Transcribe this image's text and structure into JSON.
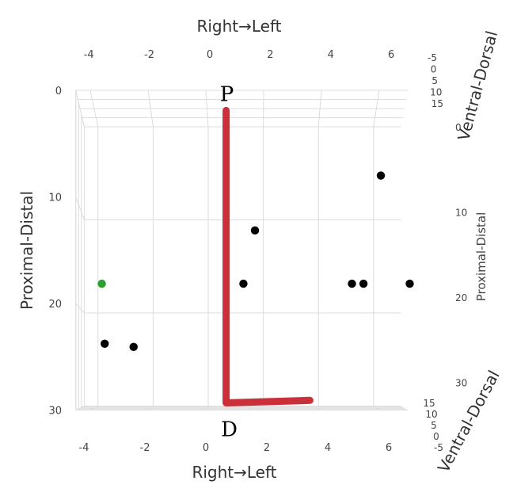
{
  "chart_data": {
    "type": "scatter",
    "projection": "3d",
    "grid": true,
    "axes": {
      "x": {
        "label": "Right→Left",
        "range": [
          -4.5,
          7
        ],
        "ticks": [
          -4,
          -2,
          0,
          2,
          4,
          6
        ]
      },
      "y": {
        "label": "Proximal-Distal",
        "range": [
          0,
          30
        ],
        "ticks": [
          0,
          10,
          20,
          30
        ],
        "reversed": true
      },
      "z": {
        "label": "Ventral-Dorsal",
        "range": [
          -5,
          15
        ],
        "ticks": [
          -5,
          0,
          5,
          10,
          15
        ]
      }
    },
    "series": [
      {
        "type": "line",
        "color": "#c9303a",
        "points": [
          {
            "x": 0.7,
            "y": 1,
            "z": 0
          },
          {
            "x": 0.7,
            "y": 30,
            "z": 0
          },
          {
            "x": 3.6,
            "y": 28.5,
            "z": 0
          }
        ],
        "endpoint_labels": [
          "P",
          "D"
        ]
      },
      {
        "type": "scatter",
        "color": "#000000",
        "points": [
          {
            "x": -3.5,
            "y": 24,
            "z": 0
          },
          {
            "x": -2.5,
            "y": 24.3,
            "z": 0
          },
          {
            "x": 1.3,
            "y": 18,
            "z": 0
          },
          {
            "x": 1.7,
            "y": 13,
            "z": 0
          },
          {
            "x": 5,
            "y": 18,
            "z": 0
          },
          {
            "x": 5.4,
            "y": 18,
            "z": 0
          },
          {
            "x": 6,
            "y": 8,
            "z": 0
          },
          {
            "x": 7,
            "y": 18,
            "z": 0
          }
        ]
      },
      {
        "type": "scatter",
        "color": "#2ca02c",
        "points": [
          {
            "x": -3.6,
            "y": 18,
            "z": 0
          }
        ]
      }
    ]
  }
}
